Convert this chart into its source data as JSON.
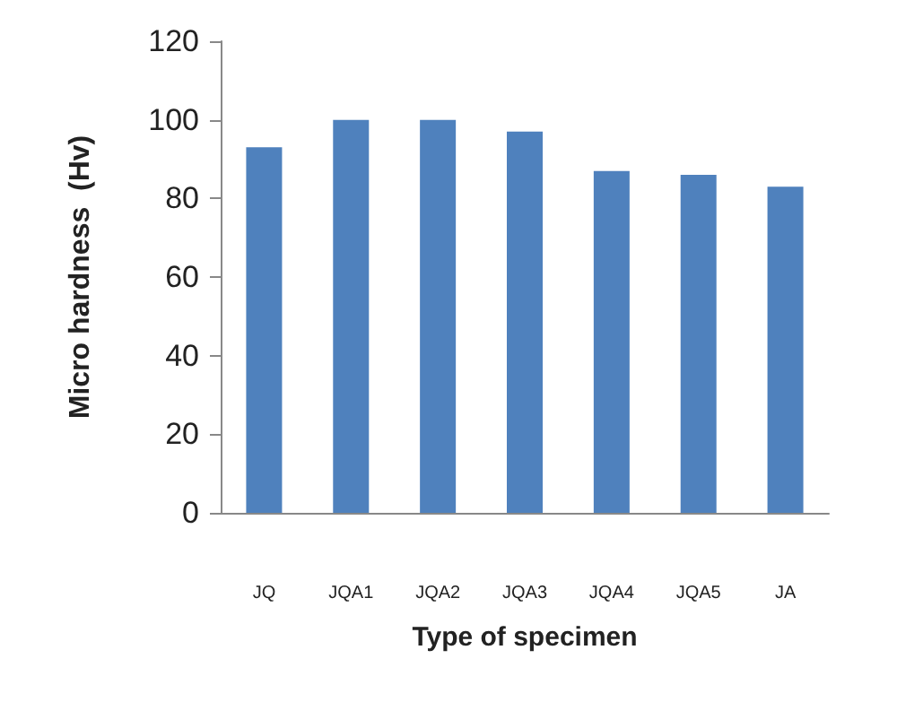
{
  "chart_data": {
    "type": "bar",
    "xlabel": "Type of specimen",
    "ylabel": "Micro hardness  (Hv)",
    "categories": [
      "JQ",
      "JQA1",
      "JQA2",
      "JQA3",
      "JQA4",
      "JQA5",
      "JA"
    ],
    "values": [
      93,
      100,
      100,
      97,
      87,
      86,
      83
    ],
    "color": "#4f81bd",
    "ylim": [
      0,
      120
    ],
    "yticks": [
      0,
      20,
      40,
      60,
      80,
      100,
      120
    ],
    "grid": false
  }
}
